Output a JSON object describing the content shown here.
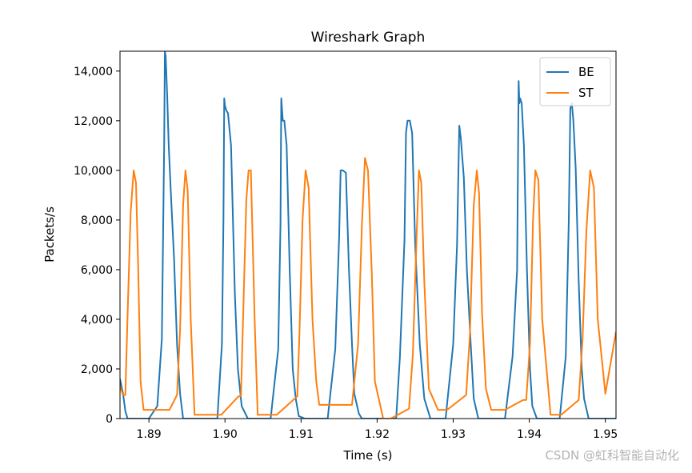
{
  "chart_data": {
    "type": "line",
    "title": "Wireshark Graph",
    "xlabel": "Time (s)",
    "ylabel": "Packets/s",
    "xlim": [
      1.8862,
      1.9514
    ],
    "ylim": [
      0,
      14800
    ],
    "xticks": [
      1.89,
      1.9,
      1.91,
      1.92,
      1.93,
      1.94,
      1.95
    ],
    "xtick_labels": [
      "1.89",
      "1.90",
      "1.91",
      "1.92",
      "1.93",
      "1.94",
      "1.95"
    ],
    "yticks": [
      0,
      2000,
      4000,
      6000,
      8000,
      10000,
      12000,
      14000
    ],
    "ytick_labels": [
      "0",
      "2,000",
      "4,000",
      "6,000",
      "8,000",
      "10,000",
      "12,000",
      "14,000"
    ],
    "grid": false,
    "legend_position": "top-right",
    "series": [
      {
        "name": "BE",
        "color": "#1f77b4",
        "x": [
          1.8862,
          1.8866,
          1.8869,
          1.8872,
          1.8875,
          1.888,
          1.889,
          1.89,
          1.8911,
          1.8917,
          1.892,
          1.8921,
          1.8922,
          1.8924,
          1.8926,
          1.8929,
          1.8933,
          1.8937,
          1.8941,
          1.8945,
          1.895,
          1.899,
          1.8996,
          1.8998,
          1.8999,
          1.9,
          1.9002,
          1.9004,
          1.9008,
          1.9013,
          1.9017,
          1.9022,
          1.903,
          1.906,
          1.907,
          1.9073,
          1.9074,
          1.9076,
          1.9078,
          1.9081,
          1.9085,
          1.9089,
          1.9093,
          1.9097,
          1.9105,
          1.9135,
          1.9145,
          1.915,
          1.9152,
          1.9155,
          1.9159,
          1.9163,
          1.9167,
          1.917,
          1.9176,
          1.918,
          1.9225,
          1.923,
          1.9236,
          1.9238,
          1.924,
          1.9243,
          1.9246,
          1.925,
          1.9256,
          1.9262,
          1.927,
          1.929,
          1.93,
          1.9305,
          1.9308,
          1.931,
          1.9314,
          1.9318,
          1.9323,
          1.9327,
          1.9333,
          1.9368,
          1.9378,
          1.9384,
          1.9386,
          1.9387,
          1.9388,
          1.939,
          1.9393,
          1.9397,
          1.9401,
          1.9404,
          1.941,
          1.944,
          1.9448,
          1.9452,
          1.9454,
          1.9456,
          1.9458,
          1.9461,
          1.9465,
          1.9469,
          1.9472,
          1.9478,
          1.9514
        ],
        "y": [
          1600,
          1000,
          300,
          0,
          0,
          0,
          0,
          0,
          500,
          3200,
          11000,
          14800,
          14600,
          13000,
          11000,
          9000,
          6500,
          3000,
          1000,
          0,
          0,
          0,
          3000,
          8000,
          12900,
          12600,
          12400,
          12300,
          11000,
          5000,
          2000,
          500,
          0,
          0,
          2800,
          7800,
          12900,
          12000,
          12000,
          11000,
          6000,
          2000,
          800,
          100,
          0,
          0,
          2800,
          7300,
          10000,
          10000,
          9900,
          6000,
          3000,
          1000,
          200,
          0,
          0,
          2500,
          7200,
          11500,
          12000,
          12000,
          11500,
          7000,
          3000,
          800,
          0,
          0,
          3000,
          7000,
          11800,
          11300,
          9700,
          6000,
          3000,
          800,
          0,
          0,
          2500,
          6000,
          13600,
          12700,
          12900,
          12700,
          11000,
          6000,
          2000,
          500,
          0,
          0,
          2500,
          8000,
          12500,
          12700,
          12000,
          10100,
          5500,
          2000,
          800,
          0,
          0
        ]
      },
      {
        "name": "ST",
        "color": "#ff7f0e",
        "x": [
          1.8862,
          1.8866,
          1.8869,
          1.8872,
          1.8876,
          1.888,
          1.8883,
          1.8886,
          1.8889,
          1.8893,
          1.8897,
          1.8901,
          1.8905,
          1.8917,
          1.8927,
          1.8937,
          1.8941,
          1.8945,
          1.8948,
          1.8951,
          1.8955,
          1.896,
          1.8966,
          1.8978,
          1.8993,
          1.8995,
          1.9018,
          1.9021,
          1.9024,
          1.9028,
          1.9031,
          1.9034,
          1.9039,
          1.9043,
          1.9055,
          1.9065,
          1.9066,
          1.9068,
          1.9095,
          1.9098,
          1.9102,
          1.9106,
          1.911,
          1.9115,
          1.912,
          1.9124,
          1.913,
          1.9135,
          1.9138,
          1.9167,
          1.9175,
          1.918,
          1.9184,
          1.9188,
          1.9193,
          1.9197,
          1.9208,
          1.9213,
          1.9218,
          1.9242,
          1.9247,
          1.9252,
          1.9255,
          1.9258,
          1.9262,
          1.9268,
          1.928,
          1.929,
          1.9292,
          1.9317,
          1.9322,
          1.9327,
          1.9331,
          1.9334,
          1.9338,
          1.9343,
          1.935,
          1.9365,
          1.9368,
          1.9392,
          1.9396,
          1.9401,
          1.9405,
          1.9408,
          1.9412,
          1.9417,
          1.9428,
          1.944,
          1.9442,
          1.9465,
          1.947,
          1.9475,
          1.948,
          1.9485,
          1.949,
          1.95,
          1.9514
        ],
        "y": [
          1300,
          950,
          950,
          4200,
          8300,
          10000,
          9500,
          6000,
          1500,
          350,
          350,
          350,
          350,
          350,
          350,
          950,
          3600,
          8600,
          10000,
          9200,
          4000,
          150,
          150,
          150,
          150,
          150,
          900,
          900,
          4200,
          8800,
          10000,
          10000,
          4000,
          150,
          150,
          150,
          150,
          150,
          900,
          3500,
          8000,
          10000,
          9300,
          4000,
          1500,
          550,
          550,
          550,
          550,
          550,
          3000,
          7800,
          10500,
          10000,
          5800,
          1500,
          0,
          0,
          0,
          400,
          2600,
          7500,
          10000,
          9500,
          5500,
          1200,
          350,
          350,
          350,
          950,
          3400,
          8600,
          10000,
          9100,
          4200,
          1200,
          350,
          350,
          350,
          750,
          750,
          3000,
          8000,
          10000,
          9600,
          4000,
          150,
          150,
          150,
          750,
          3200,
          7500,
          10000,
          9300,
          4000,
          1000,
          3500
        ]
      }
    ]
  },
  "watermark": "CSDN @虹科智能自动化"
}
